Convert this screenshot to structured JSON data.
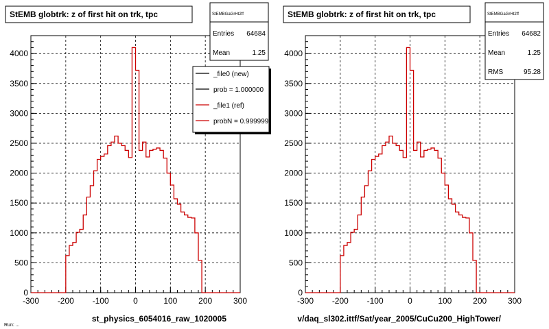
{
  "colors": {
    "new_line": "#000000",
    "ref_line": "#cc0000",
    "grid": "#000000",
    "background": "#ffffff"
  },
  "footer_note": "Run: ...",
  "legend": {
    "entries": [
      {
        "label": "_file0 (new)",
        "color": "#000000"
      },
      {
        "label": "prob = 1.000000",
        "color": "#000000"
      },
      {
        "label": "_file1 (ref)",
        "color": "#cc0000"
      },
      {
        "label": "probN = 0.999999",
        "color": "#cc0000"
      }
    ]
  },
  "chart_data": [
    {
      "type": "histogram",
      "title": "StEMB globtrk: z of first hit on trk, tpc",
      "xlabel": "st_physics_6054016_raw_1020005",
      "ylabel": "",
      "xlim": [
        -300,
        300
      ],
      "ylim": [
        0,
        4300
      ],
      "xticks": [
        "-300",
        "-200",
        "-100",
        "0",
        "100",
        "200",
        "300"
      ],
      "yticks": [
        "0",
        "500",
        "1000",
        "1500",
        "2000",
        "2500",
        "3000",
        "3500",
        "4000"
      ],
      "grid": true,
      "stats": {
        "name": "StEMBGaGrHt2ff",
        "rows": [
          {
            "label": "Entries",
            "value": "64684"
          },
          {
            "label": "Mean",
            "value": "1.25"
          }
        ]
      },
      "bin_edges_start": -300,
      "bin_width": 10,
      "series": [
        {
          "name": "_file1 (ref)",
          "color": "#cc0000",
          "values": [
            0,
            0,
            0,
            0,
            0,
            0,
            0,
            0,
            0,
            0,
            620,
            790,
            840,
            1010,
            1060,
            1300,
            1600,
            1790,
            2040,
            2230,
            2280,
            2320,
            2460,
            2520,
            2620,
            2500,
            2460,
            2380,
            2260,
            4100,
            3720,
            2380,
            2520,
            2270,
            2380,
            2400,
            2420,
            2380,
            2250,
            2000,
            1800,
            1570,
            1480,
            1350,
            1300,
            1260,
            1250,
            1000,
            540,
            0,
            0,
            0,
            0,
            0,
            0,
            0,
            0,
            0,
            0,
            0
          ]
        }
      ]
    },
    {
      "type": "histogram",
      "title": "StEMB globtrk: z of first hit on trk, tpc",
      "xlabel": "v/daq_sl302.ittf/Sat/year_2005/CuCu200_HighTower/",
      "ylabel": "",
      "xlim": [
        -300,
        300
      ],
      "ylim": [
        0,
        4300
      ],
      "xticks": [
        "-300",
        "-200",
        "-100",
        "0",
        "100",
        "200",
        "300"
      ],
      "yticks": [
        "0",
        "500",
        "1000",
        "1500",
        "2000",
        "2500",
        "3000",
        "3500",
        "4000"
      ],
      "grid": true,
      "stats": {
        "name": "StEMBGaGrHt2ff",
        "rows": [
          {
            "label": "Entries",
            "value": "64682"
          },
          {
            "label": "Mean",
            "value": "1.25"
          },
          {
            "label": "RMS",
            "value": "95.28"
          }
        ]
      },
      "bin_edges_start": -300,
      "bin_width": 10,
      "series": [
        {
          "name": "",
          "color": "#cc0000",
          "values": [
            0,
            0,
            0,
            0,
            0,
            0,
            0,
            0,
            0,
            0,
            620,
            790,
            840,
            1010,
            1060,
            1300,
            1600,
            1790,
            2040,
            2230,
            2280,
            2320,
            2460,
            2520,
            2620,
            2500,
            2460,
            2380,
            2260,
            4100,
            3720,
            2380,
            2520,
            2270,
            2380,
            2400,
            2420,
            2380,
            2250,
            2000,
            1800,
            1570,
            1480,
            1350,
            1300,
            1260,
            1250,
            1000,
            540,
            0,
            0,
            0,
            0,
            0,
            0,
            0,
            0,
            0,
            0,
            0
          ]
        }
      ]
    }
  ]
}
